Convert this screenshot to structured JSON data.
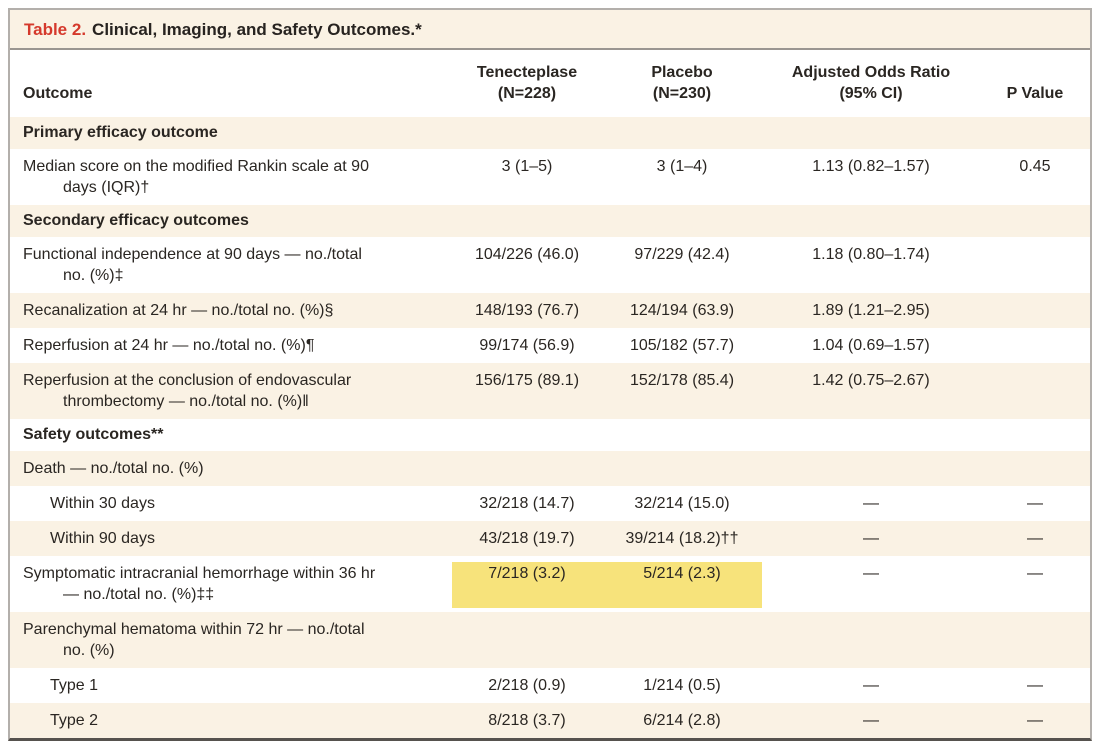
{
  "title": {
    "prefix": "Table 2.",
    "rest": "Clinical, Imaging, and Safety Outcomes.*"
  },
  "colors": {
    "accent_red": "#d5392c",
    "row_beige": "#faf2e4",
    "highlight_yellow": "#f7e37b",
    "frame_border_gray": "#b3afab",
    "bottom_rule_dark": "#56524e"
  },
  "header": {
    "outcome": "Outcome",
    "tenecteplase": "Tenecteplase\n(N=228)",
    "placebo": "Placebo\n(N=230)",
    "aor": "Adjusted Odds Ratio\n(95% CI)",
    "p_value": "P Value"
  },
  "rows": [
    {
      "type": "section",
      "label": "Primary efficacy outcome"
    },
    {
      "type": "data",
      "outcome": "Median score on the modified Rankin scale at 90\ndays (IQR)†",
      "tenecteplase": "3 (1–5)",
      "placebo": "3 (1–4)",
      "aor": "1.13 (0.82–1.57)",
      "p": "0.45"
    },
    {
      "type": "section",
      "label": "Secondary efficacy outcomes"
    },
    {
      "type": "data",
      "outcome": "Functional independence at 90 days — no./total\nno. (%)‡",
      "tenecteplase": "104/226 (46.0)",
      "placebo": "97/229 (42.4)",
      "aor": "1.18 (0.80–1.74)",
      "p": ""
    },
    {
      "type": "data",
      "outcome": "Recanalization at 24 hr — no./total no. (%)§",
      "tenecteplase": "148/193 (76.7)",
      "placebo": "124/194 (63.9)",
      "aor": "1.89 (1.21–2.95)",
      "p": ""
    },
    {
      "type": "data",
      "outcome": "Reperfusion at 24 hr — no./total no. (%)¶",
      "tenecteplase": "99/174 (56.9)",
      "placebo": "105/182 (57.7)",
      "aor": "1.04 (0.69–1.57)",
      "p": ""
    },
    {
      "type": "data",
      "outcome": "Reperfusion at the conclusion of endovascular\nthrombectomy — no./total no. (%)‖",
      "tenecteplase": "156/175 (89.1)",
      "placebo": "152/178 (85.4)",
      "aor": "1.42 (0.75–2.67)",
      "p": ""
    },
    {
      "type": "section",
      "label": "Safety outcomes**"
    },
    {
      "type": "subheader",
      "outcome": "Death — no./total no. (%)"
    },
    {
      "type": "data-indent",
      "outcome": "Within 30 days",
      "tenecteplase": "32/218 (14.7)",
      "placebo": "32/214 (15.0)",
      "aor": "—",
      "p": "—"
    },
    {
      "type": "data-indent",
      "outcome": "Within 90 days",
      "tenecteplase": "43/218 (19.7)",
      "placebo": "39/214 (18.2)††",
      "aor": "—",
      "p": "—"
    },
    {
      "type": "data",
      "highlight": true,
      "outcome": "Symptomatic intracranial hemorrhage within 36 hr\n— no./total no. (%)‡‡",
      "tenecteplase": "7/218 (3.2)",
      "placebo": "5/214 (2.3)",
      "aor": "—",
      "p": "—"
    },
    {
      "type": "subheader",
      "outcome": "Parenchymal hematoma within 72 hr — no./total\nno. (%)"
    },
    {
      "type": "data-indent",
      "outcome": "Type 1",
      "tenecteplase": "2/218 (0.9)",
      "placebo": "1/214 (0.5)",
      "aor": "—",
      "p": "—"
    },
    {
      "type": "data-indent",
      "outcome": "Type 2",
      "tenecteplase": "8/218 (3.7)",
      "placebo": "6/214 (2.8)",
      "aor": "—",
      "p": "—"
    }
  ]
}
